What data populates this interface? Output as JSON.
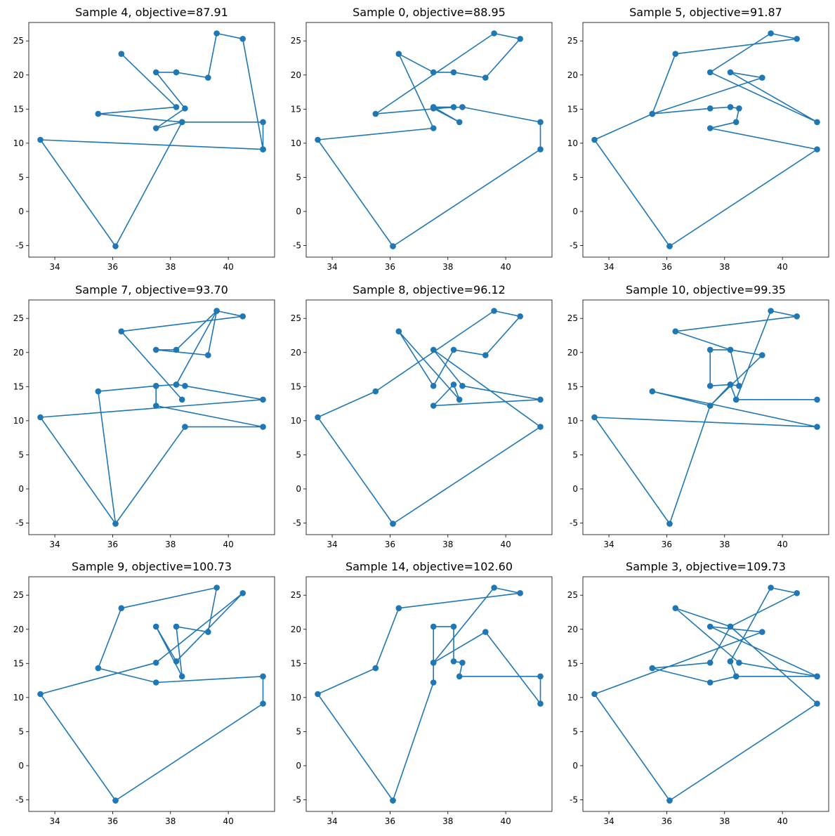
{
  "chart_data": [
    {
      "type": "line",
      "title": "Sample 4, objective=87.91",
      "x": [
        41.2,
        40.5,
        39.6,
        39.3,
        38.2,
        37.5,
        38.5,
        37.5,
        38.4,
        41.2,
        41.2,
        33.5,
        36.1,
        38.4,
        35.5,
        38.2,
        36.3
      ],
      "y": [
        9.1,
        25.3,
        26.1,
        19.6,
        20.4,
        20.4,
        15.1,
        12.2,
        13.1,
        13.1,
        9.1,
        10.5,
        -5.1,
        13.1,
        14.3,
        15.3,
        23.1
      ],
      "xlim": [
        33.1,
        41.6
      ],
      "ylim": [
        -6.7,
        27.7
      ],
      "xticks": [
        34,
        36,
        38,
        40
      ],
      "yticks": [
        -5,
        0,
        5,
        10,
        15,
        20,
        25
      ],
      "marker": "o",
      "color": "#1f77b4"
    },
    {
      "type": "line",
      "title": "Sample 0, objective=88.95",
      "x": [
        36.1,
        41.2,
        41.2,
        38.5,
        37.5,
        38.4,
        37.5,
        38.2,
        35.5,
        39.6,
        40.5,
        39.3,
        38.2,
        37.5,
        36.3,
        37.5,
        33.5,
        36.1
      ],
      "y": [
        -5.1,
        9.1,
        13.1,
        15.3,
        15.1,
        13.1,
        15.3,
        15.3,
        14.3,
        26.1,
        25.3,
        19.6,
        20.4,
        20.4,
        23.1,
        12.2,
        10.5,
        -5.1
      ],
      "xlim": [
        33.1,
        41.6
      ],
      "ylim": [
        -6.7,
        27.7
      ],
      "xticks": [
        34,
        36,
        38,
        40
      ],
      "yticks": [
        -5,
        0,
        5,
        10,
        15,
        20,
        25
      ],
      "marker": "o",
      "color": "#1f77b4"
    },
    {
      "type": "line",
      "title": "Sample 5, objective=91.87",
      "x": [
        36.1,
        41.2,
        37.5,
        38.4,
        38.5,
        38.2,
        37.5,
        35.5,
        39.3,
        38.2,
        41.2,
        37.5,
        39.6,
        40.5,
        36.3,
        35.5,
        33.5,
        36.1
      ],
      "y": [
        -5.1,
        9.1,
        12.2,
        13.1,
        15.1,
        15.3,
        15.1,
        14.3,
        19.6,
        20.4,
        13.1,
        20.4,
        26.1,
        25.3,
        23.1,
        14.3,
        10.5,
        -5.1
      ],
      "xlim": [
        33.1,
        41.6
      ],
      "ylim": [
        -6.7,
        27.7
      ],
      "xticks": [
        34,
        36,
        38,
        40
      ],
      "yticks": [
        -5,
        0,
        5,
        10,
        15,
        20,
        25
      ],
      "marker": "o",
      "color": "#1f77b4"
    },
    {
      "type": "line",
      "title": "Sample 7, objective=93.70",
      "x": [
        36.1,
        35.5,
        37.5,
        38.2,
        38.5,
        41.2,
        33.5,
        36.1,
        38.5,
        41.2,
        37.5,
        37.5,
        38.2,
        39.6,
        38.2,
        37.5,
        39.3,
        39.6,
        40.5,
        36.3,
        38.4
      ],
      "y": [
        -5.1,
        14.3,
        15.1,
        15.3,
        15.1,
        13.1,
        10.5,
        -5.1,
        9.1,
        9.1,
        12.2,
        15.1,
        15.3,
        26.1,
        20.4,
        20.4,
        19.6,
        26.1,
        25.3,
        23.1,
        13.1
      ],
      "xlim": [
        33.1,
        41.6
      ],
      "ylim": [
        -6.7,
        27.7
      ],
      "xticks": [
        34,
        36,
        38,
        40
      ],
      "yticks": [
        -5,
        0,
        5,
        10,
        15,
        20,
        25
      ],
      "marker": "o",
      "color": "#1f77b4"
    },
    {
      "type": "line",
      "title": "Sample 8, objective=96.12",
      "x": [
        36.1,
        41.2,
        37.5,
        38.5,
        41.2,
        37.5,
        38.2,
        38.4,
        36.3,
        37.5,
        38.2,
        39.3,
        40.5,
        39.6,
        35.5,
        33.5,
        36.1
      ],
      "y": [
        -5.1,
        9.1,
        20.4,
        15.1,
        13.1,
        12.2,
        15.3,
        13.1,
        23.1,
        15.1,
        20.4,
        19.6,
        25.3,
        26.1,
        14.3,
        10.5,
        -5.1
      ],
      "xlim": [
        33.1,
        41.6
      ],
      "ylim": [
        -6.7,
        27.7
      ],
      "xticks": [
        34,
        36,
        38,
        40
      ],
      "yticks": [
        -5,
        0,
        5,
        10,
        15,
        20,
        25
      ],
      "marker": "o",
      "color": "#1f77b4"
    },
    {
      "type": "line",
      "title": "Sample 10, objective=99.35",
      "x": [
        36.1,
        33.5,
        41.2,
        35.5,
        37.5,
        39.3,
        38.2,
        37.5,
        37.5,
        38.2,
        38.4,
        41.2,
        38.4,
        39.6,
        40.5,
        36.3,
        38.2,
        38.5,
        38.2,
        37.5,
        36.1
      ],
      "y": [
        -5.1,
        10.5,
        9.1,
        14.3,
        12.2,
        19.6,
        20.4,
        20.4,
        15.1,
        15.3,
        13.1,
        13.1,
        13.1,
        26.1,
        25.3,
        23.1,
        20.4,
        15.1,
        15.3,
        12.2,
        -5.1
      ],
      "xlim": [
        33.1,
        41.6
      ],
      "ylim": [
        -6.7,
        27.7
      ],
      "xticks": [
        34,
        36,
        38,
        40
      ],
      "yticks": [
        -5,
        0,
        5,
        10,
        15,
        20,
        25
      ],
      "marker": "o",
      "color": "#1f77b4"
    },
    {
      "type": "line",
      "title": "Sample 9, objective=100.73",
      "x": [
        36.1,
        41.2,
        41.2,
        37.5,
        35.5,
        36.3,
        39.6,
        39.3,
        38.2,
        38.4,
        37.5,
        38.2,
        40.5,
        37.5,
        33.5,
        36.1
      ],
      "y": [
        -5.1,
        9.1,
        13.1,
        12.2,
        14.3,
        23.1,
        26.1,
        19.6,
        20.4,
        13.1,
        20.4,
        15.3,
        25.3,
        15.1,
        10.5,
        -5.1
      ],
      "xlim": [
        33.1,
        41.6
      ],
      "ylim": [
        -6.7,
        27.7
      ],
      "xticks": [
        34,
        36,
        38,
        40
      ],
      "yticks": [
        -5,
        0,
        5,
        10,
        15,
        20,
        25
      ],
      "marker": "o",
      "color": "#1f77b4"
    },
    {
      "type": "line",
      "title": "Sample 14, objective=102.60",
      "x": [
        36.1,
        37.5,
        37.5,
        37.5,
        38.2,
        38.2,
        38.5,
        38.4,
        41.2,
        41.2,
        39.3,
        37.5,
        39.6,
        40.5,
        36.3,
        35.5,
        33.5,
        36.1
      ],
      "y": [
        -5.1,
        12.2,
        15.1,
        20.4,
        20.4,
        15.3,
        15.1,
        13.1,
        13.1,
        9.1,
        19.6,
        15.1,
        26.1,
        25.3,
        23.1,
        14.3,
        10.5,
        -5.1
      ],
      "xlim": [
        33.1,
        41.6
      ],
      "ylim": [
        -6.7,
        27.7
      ],
      "xticks": [
        34,
        36,
        38,
        40
      ],
      "yticks": [
        -5,
        0,
        5,
        10,
        15,
        20,
        25
      ],
      "marker": "o",
      "color": "#1f77b4"
    },
    {
      "type": "line",
      "title": "Sample 3, objective=109.73",
      "x": [
        36.1,
        33.5,
        39.3,
        37.5,
        41.2,
        38.4,
        38.2,
        38.2,
        39.6,
        40.5,
        38.2,
        36.3,
        38.5,
        41.2,
        38.4,
        37.5,
        35.5,
        37.5,
        38.2,
        41.2,
        36.1
      ],
      "y": [
        -5.1,
        10.5,
        19.6,
        20.4,
        13.1,
        13.1,
        15.3,
        15.3,
        26.1,
        25.3,
        20.4,
        23.1,
        15.1,
        13.1,
        13.1,
        12.2,
        14.3,
        15.1,
        20.4,
        9.1,
        -5.1
      ],
      "xlim": [
        33.1,
        41.6
      ],
      "ylim": [
        -6.7,
        27.7
      ],
      "xticks": [
        34,
        36,
        38,
        40
      ],
      "yticks": [
        -5,
        0,
        5,
        10,
        15,
        20,
        25
      ],
      "marker": "o",
      "color": "#1f77b4"
    }
  ]
}
